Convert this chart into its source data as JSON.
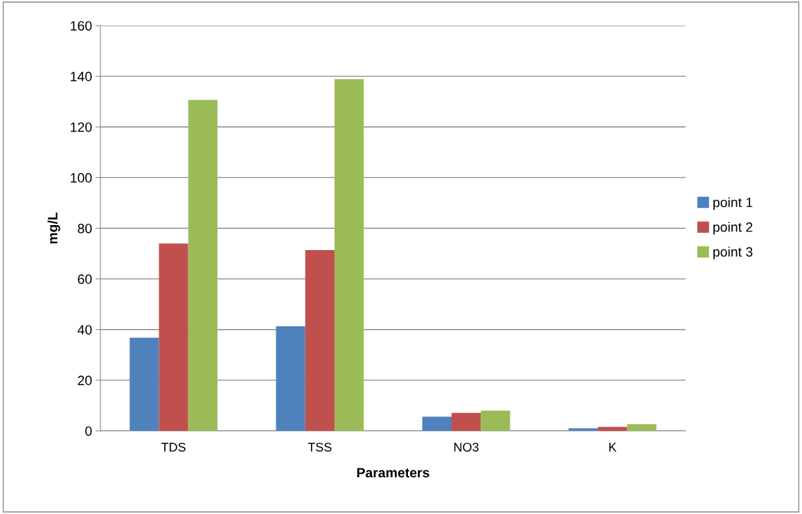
{
  "chart_data": {
    "type": "bar",
    "xlabel": "Parameters",
    "ylabel": "mg/L",
    "categories": [
      "TDS",
      "TSS",
      "NO3",
      "K"
    ],
    "series": [
      {
        "name": "point 1",
        "color": "#4f81bd",
        "values": [
          36.8,
          41.3,
          5.6,
          1.0
        ]
      },
      {
        "name": "point 2",
        "color": "#c0504d",
        "values": [
          74.0,
          71.4,
          7.1,
          1.6
        ]
      },
      {
        "name": "point 3",
        "color": "#9bbb59",
        "values": [
          130.7,
          138.9,
          8.0,
          2.7
        ]
      }
    ],
    "ylim": [
      0,
      160
    ],
    "yticks": [
      0,
      20,
      40,
      60,
      80,
      100,
      120,
      140,
      160
    ],
    "grid": "y",
    "legend": "right"
  }
}
